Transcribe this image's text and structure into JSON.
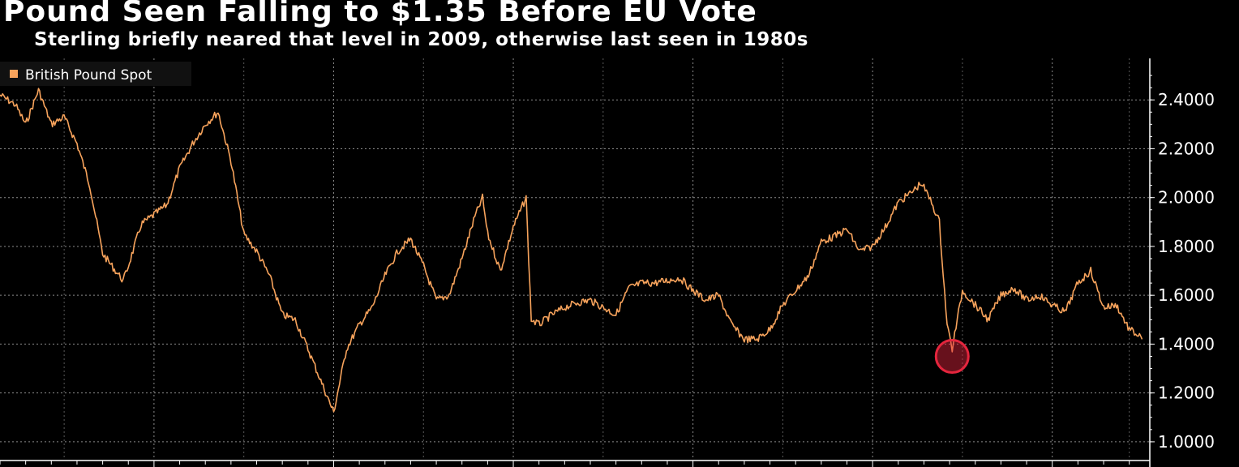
{
  "title": "Pound Seen Falling to $1.35 Before EU Vote",
  "subtitle": "Sterling briefly neared that level in 2009, otherwise last seen in 1980s",
  "colors": {
    "background": "#000000",
    "series": "#f7a35c",
    "highlight": "#e4253d",
    "grid": "#8a8a8a",
    "text": "#ffffff"
  },
  "chart_data": {
    "type": "line",
    "title": "Pound Seen Falling to $1.35 Before EU Vote",
    "subtitle": "Sterling briefly neared that level in 2009, otherwise last seen in 1980s",
    "ylim": [
      0.93,
      2.57
    ],
    "xlim": [
      1972.0,
      2016.8
    ],
    "y_ticks": [
      {
        "value": 1.0,
        "label": "1.0000"
      },
      {
        "value": 1.2,
        "label": "1.2000"
      },
      {
        "value": 1.4,
        "label": "1.4000"
      },
      {
        "value": 1.6,
        "label": "1.6000"
      },
      {
        "value": 1.8,
        "label": "1.8000"
      },
      {
        "value": 2.0,
        "label": "2.0000"
      },
      {
        "value": 2.2,
        "label": "2.2000"
      },
      {
        "value": 2.4,
        "label": "2.4000"
      }
    ],
    "x_major_gridlines": [
      1978,
      1985,
      1992,
      1999,
      2006,
      2013
    ],
    "x_minor_gridlines": [
      1974.5,
      1981.5,
      1988.5,
      1995.5,
      2002.5,
      2009.5,
      2016.0
    ],
    "x_labels_visible": false,
    "grid": true,
    "legend_position": "top-left",
    "series": [
      {
        "name": "British Pound Spot",
        "x": [
          1972.0,
          1972.3,
          1972.6,
          1973.0,
          1973.5,
          1974.0,
          1974.5,
          1975.0,
          1975.5,
          1976.0,
          1976.5,
          1976.8,
          1977.0,
          1977.5,
          1978.0,
          1978.5,
          1979.0,
          1979.5,
          1980.0,
          1980.5,
          1981.0,
          1981.5,
          1982.0,
          1982.5,
          1983.0,
          1983.5,
          1984.0,
          1984.5,
          1985.0,
          1985.5,
          1986.0,
          1986.5,
          1987.0,
          1987.5,
          1988.0,
          1988.5,
          1989.0,
          1989.5,
          1990.0,
          1990.5,
          1990.8,
          1991.0,
          1991.5,
          1992.0,
          1992.5,
          1992.7,
          1993.0,
          1993.5,
          1994.0,
          1994.5,
          1995.0,
          1995.5,
          1996.0,
          1996.5,
          1997.0,
          1997.5,
          1998.0,
          1998.5,
          1999.0,
          1999.5,
          2000.0,
          2000.5,
          2001.0,
          2001.5,
          2002.0,
          2002.5,
          2003.0,
          2003.5,
          2004.0,
          2004.5,
          2005.0,
          2005.5,
          2006.0,
          2006.5,
          2007.0,
          2007.5,
          2007.9,
          2008.3,
          2008.6,
          2008.9,
          2009.1,
          2009.5,
          2010.0,
          2010.5,
          2011.0,
          2011.5,
          2012.0,
          2012.5,
          2013.0,
          2013.5,
          2014.0,
          2014.5,
          2015.0,
          2015.5,
          2016.0,
          2016.3,
          2016.5
        ],
        "y": [
          2.42,
          2.4,
          2.38,
          2.3,
          2.44,
          2.3,
          2.33,
          2.22,
          2.05,
          1.77,
          1.7,
          1.66,
          1.72,
          1.89,
          1.93,
          1.97,
          2.12,
          2.22,
          2.3,
          2.35,
          2.15,
          1.85,
          1.78,
          1.68,
          1.52,
          1.5,
          1.38,
          1.25,
          1.12,
          1.38,
          1.48,
          1.55,
          1.68,
          1.78,
          1.83,
          1.72,
          1.58,
          1.6,
          1.75,
          1.92,
          2.0,
          1.85,
          1.7,
          1.88,
          2.0,
          1.5,
          1.48,
          1.52,
          1.55,
          1.57,
          1.58,
          1.55,
          1.52,
          1.63,
          1.65,
          1.65,
          1.66,
          1.67,
          1.62,
          1.58,
          1.6,
          1.48,
          1.42,
          1.42,
          1.46,
          1.56,
          1.62,
          1.68,
          1.82,
          1.84,
          1.87,
          1.78,
          1.8,
          1.88,
          1.98,
          2.02,
          2.06,
          1.98,
          1.9,
          1.48,
          1.38,
          1.62,
          1.56,
          1.5,
          1.6,
          1.63,
          1.58,
          1.6,
          1.56,
          1.53,
          1.65,
          1.7,
          1.55,
          1.56,
          1.46,
          1.44,
          1.42
        ]
      }
    ],
    "annotations": [
      {
        "type": "circle-marker",
        "x": 2009.1,
        "y": 1.35
      }
    ]
  }
}
